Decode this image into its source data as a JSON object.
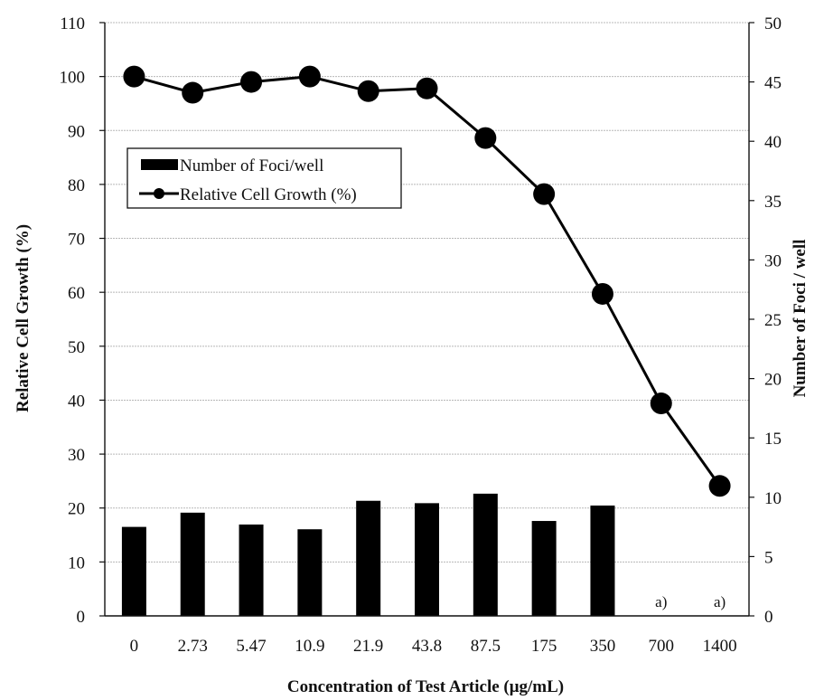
{
  "chart_data": {
    "type": "bar",
    "categories": [
      "0",
      "2.73",
      "5.47",
      "10.9",
      "21.9",
      "43.8",
      "87.5",
      "175",
      "350",
      "700",
      "1400"
    ],
    "series": [
      {
        "name": "Number of Foci/well",
        "type": "bar",
        "axis": "right",
        "values": [
          7.5,
          8.7,
          7.7,
          7.3,
          9.7,
          9.5,
          10.3,
          8.0,
          9.3,
          null,
          null
        ]
      },
      {
        "name": "Relative Cell Growth (%)",
        "type": "line",
        "axis": "left",
        "values": [
          100,
          97,
          99,
          100,
          97.3,
          97.8,
          88.6,
          78.2,
          59.7,
          39.4,
          24.1
        ]
      }
    ],
    "annotations": [
      {
        "category": "700",
        "text": "a)"
      },
      {
        "category": "1400",
        "text": "a)"
      }
    ],
    "xlabel": "Concentration of Test Article (μg/mL)",
    "ylabel": "Relative Cell Growth (%)",
    "y2label": "Number of Foci / well",
    "ylim": [
      0,
      110
    ],
    "y2lim": [
      0,
      50
    ],
    "yticks": [
      "0",
      "10",
      "20",
      "30",
      "40",
      "50",
      "60",
      "70",
      "80",
      "90",
      "100",
      "110"
    ],
    "y2ticks": [
      "0",
      "5",
      "10",
      "15",
      "20",
      "25",
      "30",
      "35",
      "40",
      "45",
      "50"
    ],
    "grid": true,
    "legend_position": "top-left"
  }
}
